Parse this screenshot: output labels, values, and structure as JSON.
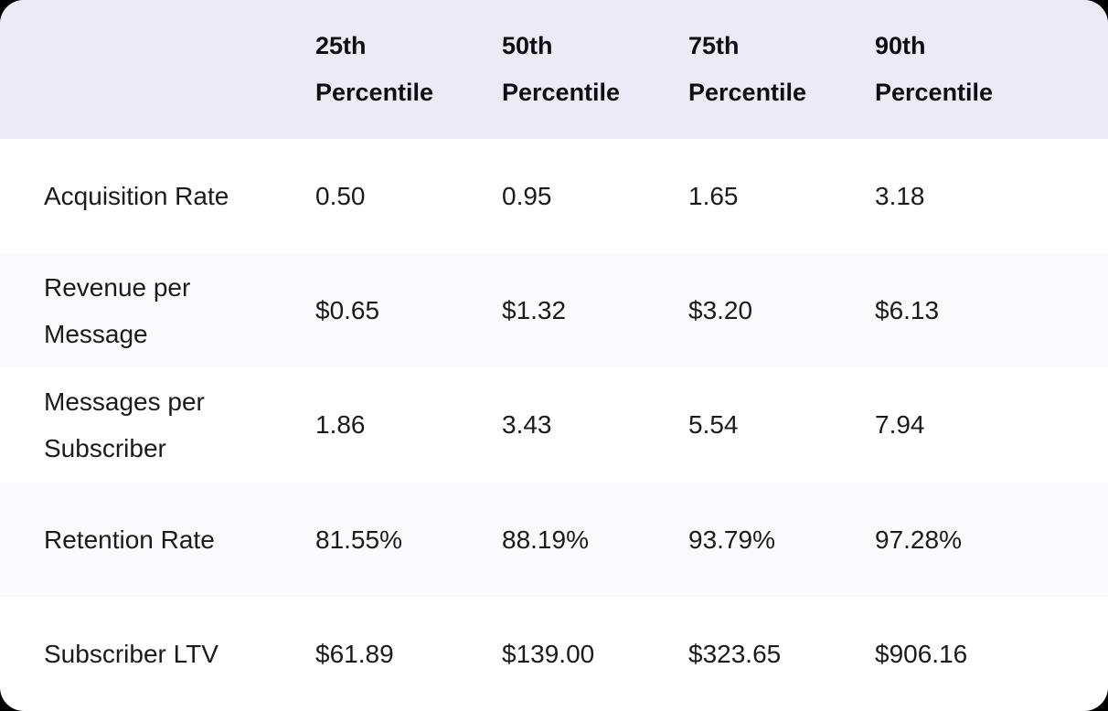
{
  "chart_data": {
    "type": "table",
    "columns": [
      "25th Percentile",
      "50th Percentile",
      "75th Percentile",
      "90th Percentile"
    ],
    "rows": [
      {
        "label": "Acquisition Rate",
        "values": [
          "0.50",
          "0.95",
          "1.65",
          "3.18"
        ]
      },
      {
        "label": "Revenue per Message",
        "values": [
          "$0.65",
          "$1.32",
          "$3.20",
          "$6.13"
        ]
      },
      {
        "label": "Messages per Subscriber",
        "values": [
          "1.86",
          "3.43",
          "5.54",
          "7.94"
        ]
      },
      {
        "label": "Retention Rate",
        "values": [
          "81.55%",
          "88.19%",
          "93.79%",
          "97.28%"
        ]
      },
      {
        "label": "Subscriber LTV",
        "values": [
          "$61.89",
          "$139.00",
          "$323.65",
          "$906.16"
        ]
      }
    ],
    "colors": {
      "header_bg": "#ECEBF5",
      "row_bg": "#FFFFFF",
      "row_stripe_bg": "#FAFAFC",
      "header_text": "#0E0E12",
      "body_text": "#1B1B1F",
      "page_bg": "#000000"
    }
  }
}
